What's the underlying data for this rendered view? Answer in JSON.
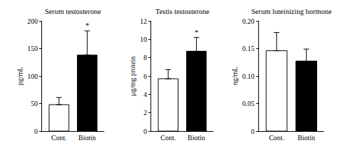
{
  "chart_data": [
    {
      "type": "bar",
      "title": "Serum testosterone",
      "y_label": "pg/mL",
      "categories": [
        "Cont.",
        "Biotin"
      ],
      "values": [
        48,
        138
      ],
      "error": [
        13,
        44
      ],
      "colors": [
        "#ffffff",
        "#000000"
      ],
      "ylim": [
        0,
        200
      ],
      "yticks": [
        0,
        50,
        100,
        150,
        200
      ],
      "grid": false,
      "annotations": [
        {
          "category": "Biotin",
          "text": "*"
        }
      ]
    },
    {
      "type": "bar",
      "title": "Testis testosterone",
      "y_label": "μg/mg protein",
      "categories": [
        "Cont.",
        "Biotin"
      ],
      "values": [
        5.7,
        8.7
      ],
      "error": [
        1.0,
        1.5
      ],
      "colors": [
        "#ffffff",
        "#000000"
      ],
      "ylim": [
        0,
        12
      ],
      "yticks": [
        0,
        2,
        4,
        6,
        8,
        10,
        12
      ],
      "grid": false,
      "annotations": [
        {
          "category": "Biotin",
          "text": "*"
        }
      ]
    },
    {
      "type": "bar",
      "title": "Serum luteinizing hormone",
      "y_label": "ng/mL",
      "categories": [
        "Cont.",
        "Biotin"
      ],
      "values": [
        0.146,
        0.127
      ],
      "error": [
        0.033,
        0.022
      ],
      "colors": [
        "#ffffff",
        "#000000"
      ],
      "ylim": [
        0,
        0.2
      ],
      "yticks": [
        0,
        0.05,
        {
          "value": 0.1,
          "label": "0.10"
        },
        0.15,
        {
          "value": 0.2,
          "label": "0.20"
        }
      ],
      "grid": false
    }
  ]
}
